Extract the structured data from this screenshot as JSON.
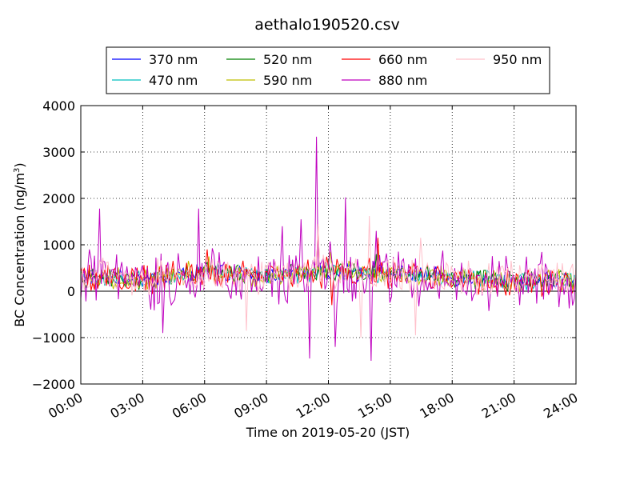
{
  "chart_data": {
    "type": "line",
    "title": "aethalo190520.csv",
    "xlabel": "Time on 2019-05-20 (JST)",
    "ylabel_main": "BC Concentration (ng/m",
    "ylabel_sup": "3",
    "ylabel_end": ")",
    "x_tick_labels": [
      "00:00",
      "03:00",
      "06:00",
      "09:00",
      "12:00",
      "15:00",
      "18:00",
      "21:00",
      "24:00"
    ],
    "x_ticks_hours": [
      0,
      3,
      6,
      9,
      12,
      15,
      18,
      21,
      24
    ],
    "xlim_hours": [
      0,
      24
    ],
    "ylim": [
      -2000,
      4000
    ],
    "y_ticks": [
      4000,
      3000,
      2000,
      1000,
      0,
      -1000,
      -2000
    ],
    "y_tick_labels": [
      "4000",
      "3000",
      "2000",
      "1000",
      "0",
      "−1000",
      "−2000"
    ],
    "grid": true,
    "legend_position": "top",
    "series": [
      {
        "name": "370 nm",
        "color": "#0000ff",
        "amplitude": 150,
        "envelope": [
          [
            0,
            300
          ],
          [
            3,
            250
          ],
          [
            6,
            420
          ],
          [
            9,
            330
          ],
          [
            12,
            420
          ],
          [
            15,
            380
          ],
          [
            18,
            300
          ],
          [
            21,
            220
          ],
          [
            24,
            250
          ]
        ],
        "spikes": [
          [
            11.8,
            620
          ],
          [
            12.9,
            600
          ],
          [
            14.2,
            650
          ]
        ]
      },
      {
        "name": "470 nm",
        "color": "#00bfbf",
        "amplitude": 160,
        "envelope": [
          [
            0,
            300
          ],
          [
            3,
            250
          ],
          [
            6,
            420
          ],
          [
            9,
            330
          ],
          [
            12,
            420
          ],
          [
            15,
            380
          ],
          [
            18,
            300
          ],
          [
            21,
            220
          ],
          [
            24,
            250
          ]
        ],
        "spikes": [
          [
            11.9,
            650
          ],
          [
            13.0,
            580
          ]
        ]
      },
      {
        "name": "520 nm",
        "color": "#008000",
        "amplitude": 170,
        "envelope": [
          [
            0,
            300
          ],
          [
            3,
            250
          ],
          [
            6,
            430
          ],
          [
            9,
            330
          ],
          [
            12,
            430
          ],
          [
            15,
            380
          ],
          [
            18,
            300
          ],
          [
            21,
            220
          ],
          [
            24,
            250
          ]
        ],
        "spikes": [
          [
            12.0,
            700
          ],
          [
            14.3,
            800
          ]
        ]
      },
      {
        "name": "590 nm",
        "color": "#bfbf00",
        "amplitude": 200,
        "envelope": [
          [
            0,
            300
          ],
          [
            3,
            250
          ],
          [
            6,
            450
          ],
          [
            9,
            330
          ],
          [
            12,
            430
          ],
          [
            15,
            380
          ],
          [
            18,
            300
          ],
          [
            21,
            220
          ],
          [
            24,
            250
          ]
        ],
        "spikes": [
          [
            6.2,
            750
          ],
          [
            12.1,
            850
          ],
          [
            14.4,
            900
          ]
        ]
      },
      {
        "name": "660 nm",
        "color": "#ff0000",
        "amplitude": 260,
        "envelope": [
          [
            0,
            280
          ],
          [
            3,
            240
          ],
          [
            6,
            430
          ],
          [
            9,
            320
          ],
          [
            12,
            420
          ],
          [
            15,
            360
          ],
          [
            18,
            290
          ],
          [
            21,
            210
          ],
          [
            24,
            240
          ]
        ],
        "spikes": [
          [
            11.5,
            1400
          ],
          [
            14.4,
            1150
          ],
          [
            6.1,
            900
          ],
          [
            12.2,
            -300
          ]
        ]
      },
      {
        "name": "880 nm",
        "color": "#bf00bf",
        "amplitude": 520,
        "envelope": [
          [
            0,
            250
          ],
          [
            3,
            180
          ],
          [
            6,
            380
          ],
          [
            9,
            280
          ],
          [
            12,
            380
          ],
          [
            15,
            320
          ],
          [
            18,
            250
          ],
          [
            21,
            160
          ],
          [
            24,
            220
          ]
        ],
        "spikes": [
          [
            0.9,
            1780
          ],
          [
            5.7,
            1780
          ],
          [
            11.4,
            3330
          ],
          [
            12.3,
            -1200
          ],
          [
            11.1,
            -1450
          ],
          [
            12.8,
            2020
          ],
          [
            14.1,
            -1500
          ],
          [
            14.3,
            1300
          ],
          [
            9.8,
            1400
          ],
          [
            10.7,
            1550
          ],
          [
            4.0,
            -900
          ]
        ]
      },
      {
        "name": "950 nm",
        "color": "#ffc0cb",
        "amplitude": 330,
        "envelope": [
          [
            0,
            300
          ],
          [
            3,
            230
          ],
          [
            6,
            420
          ],
          [
            9,
            330
          ],
          [
            12,
            430
          ],
          [
            15,
            380
          ],
          [
            18,
            300
          ],
          [
            21,
            220
          ],
          [
            24,
            250
          ]
        ],
        "spikes": [
          [
            14.0,
            1620
          ],
          [
            16.2,
            -950
          ],
          [
            16.5,
            1150
          ],
          [
            8.0,
            -850
          ],
          [
            13.6,
            -1000
          ],
          [
            11.5,
            1450
          ]
        ]
      }
    ]
  }
}
